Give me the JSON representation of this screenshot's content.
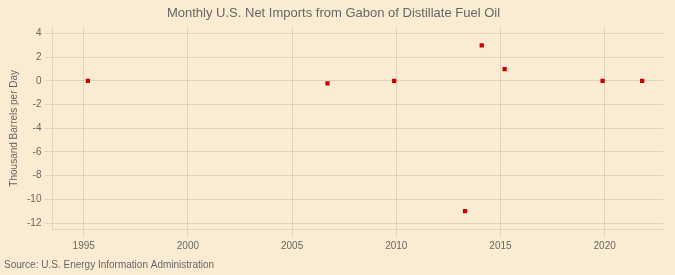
{
  "chart_data": {
    "type": "scatter",
    "title": "Monthly U.S. Net Imports from Gabon of Distillate Fuel Oil",
    "ylabel": "Thousand Barrels per Day",
    "source": "Source: U.S. Energy Information Administration",
    "x": [
      1995.2,
      2006.7,
      2009.9,
      2013.3,
      2014.1,
      2015.2,
      2019.9,
      2021.8
    ],
    "values": [
      0,
      -0.2,
      0,
      -11.0,
      3.0,
      1.0,
      0,
      0
    ],
    "color": "#cc0000",
    "marker": "square",
    "xlim": [
      1993.5,
      2022.8
    ],
    "ylim": [
      -12.5,
      4.5
    ],
    "xticks": [
      1995,
      2000,
      2005,
      2010,
      2015,
      2020
    ],
    "yticks": [
      -12,
      -10,
      -8,
      -6,
      -4,
      -2,
      0,
      2,
      4
    ],
    "grid": true
  }
}
